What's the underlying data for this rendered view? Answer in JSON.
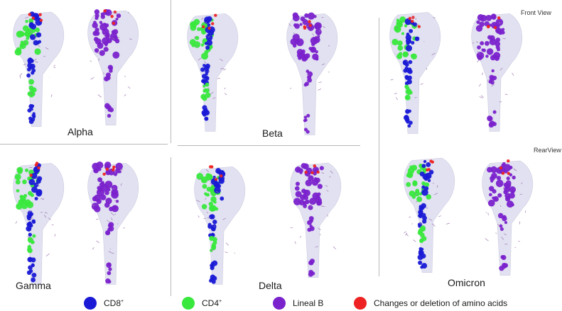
{
  "panels": {
    "alpha": {
      "label": "Alpha"
    },
    "beta": {
      "label": "Beta"
    },
    "gamma": {
      "label": "Gamma"
    },
    "delta": {
      "label": "Delta"
    },
    "omicron": {
      "label": "Omicron"
    }
  },
  "views": {
    "front": "Front View",
    "rear": "RearView"
  },
  "legend": {
    "cd8": {
      "label": "CD8",
      "sup": "+",
      "color": "#1a1ad6"
    },
    "cd4": {
      "label": "CD4",
      "sup": "+",
      "color": "#39e83d"
    },
    "lineal_b": {
      "label": "Lineal B",
      "color": "#7a22cc"
    },
    "changes": {
      "label": "Changes or deletion of amino acids",
      "color": "#ee2222"
    }
  },
  "colors": {
    "ghost": "#dcdcef",
    "ghost_edge": "#c4c4dc",
    "cd8": "#1a1ad6",
    "cd4": "#39e83d",
    "lineal_b": "#7a22cc",
    "change": "#ee2222",
    "glycan": "#a07ab0"
  }
}
